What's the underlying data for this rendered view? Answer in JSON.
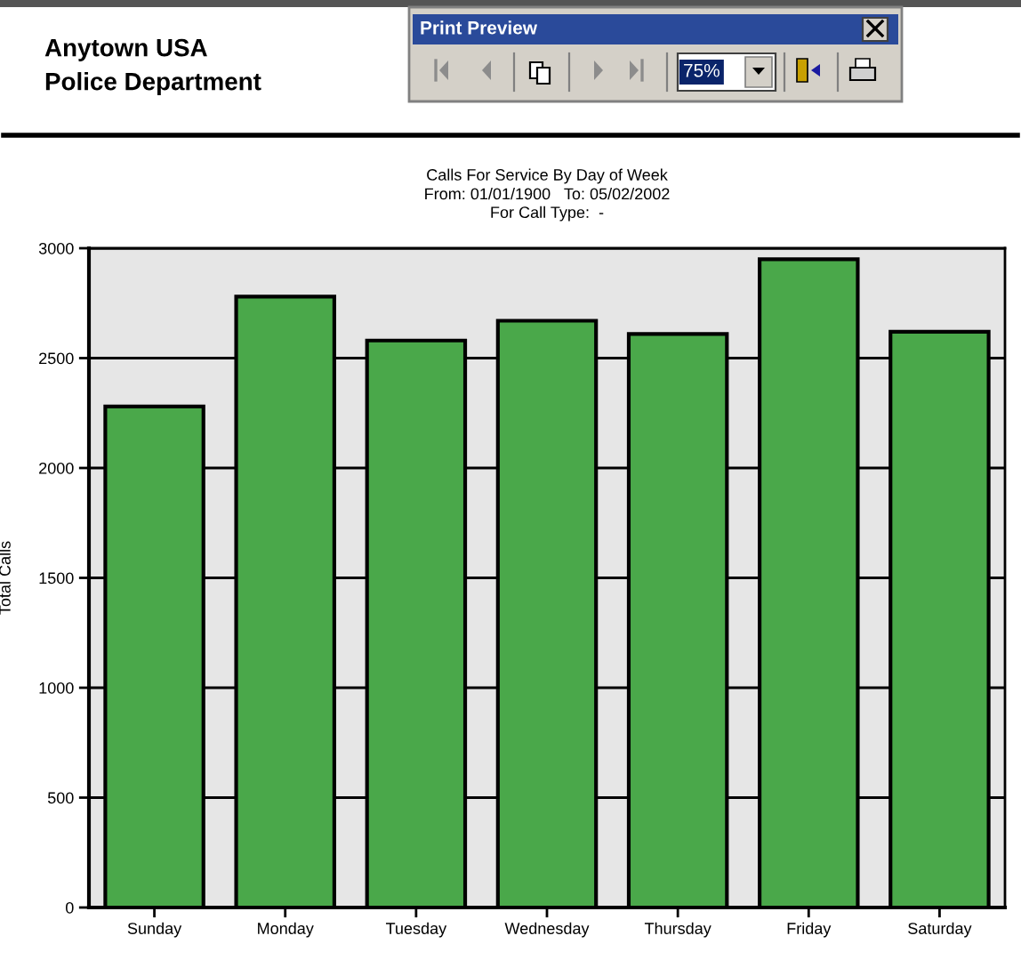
{
  "chart_data": {
    "type": "bar",
    "title": "Calls For Service By Day of Week",
    "subtitle": "From: 01/01/1900   To: 05/02/2002\nFor Call Type:  -",
    "ylabel": "Total Calls",
    "categories": [
      "Sunday",
      "Monday",
      "Tuesday",
      "Wednesday",
      "Thursday",
      "Friday",
      "Saturday"
    ],
    "values": [
      2280,
      2780,
      2580,
      2670,
      2610,
      2950,
      2620
    ],
    "color": "#4aa84a",
    "ylim": [
      0,
      3000
    ],
    "yticks": [
      0,
      500,
      1000,
      1500,
      2000,
      2500,
      3000
    ],
    "grid": "y",
    "annotations": [
      "Anytown USA",
      "Police Department",
      "Print Preview",
      "75%"
    ]
  }
}
